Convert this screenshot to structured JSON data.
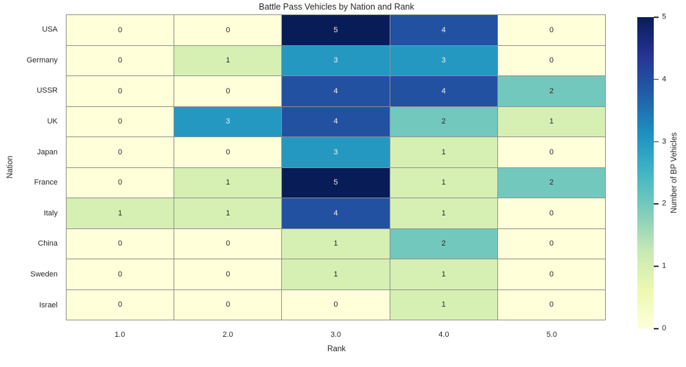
{
  "chart_data": {
    "type": "heatmap",
    "title": "Battle Pass Vehicles by Nation and Rank",
    "xlabel": "Rank",
    "ylabel": "Nation",
    "x_ticklabels": [
      "1.0",
      "2.0",
      "3.0",
      "4.0",
      "5.0"
    ],
    "y_ticklabels": [
      "USA",
      "Germany",
      "USSR",
      "UK",
      "Japan",
      "France",
      "Italy",
      "China",
      "Sweden",
      "Israel"
    ],
    "values": [
      [
        0,
        0,
        5,
        4,
        0
      ],
      [
        0,
        1,
        3,
        3,
        0
      ],
      [
        0,
        0,
        4,
        4,
        2
      ],
      [
        0,
        3,
        4,
        2,
        1
      ],
      [
        0,
        0,
        3,
        1,
        0
      ],
      [
        0,
        1,
        5,
        1,
        2
      ],
      [
        1,
        1,
        4,
        1,
        0
      ],
      [
        0,
        0,
        1,
        2,
        0
      ],
      [
        0,
        0,
        1,
        1,
        0
      ],
      [
        0,
        0,
        0,
        1,
        0
      ]
    ],
    "value_range": [
      0,
      5
    ],
    "grid_on": true,
    "colormap_name": "YlGnBu",
    "value_colors": [
      "#ffffd9",
      "#d6efb3",
      "#73c8bd",
      "#2598c1",
      "#2351a2",
      "#081d58"
    ],
    "annotation_dark_text": "#262626",
    "annotation_light_text": "#f2f2f2",
    "light_text_threshold": 3,
    "grid_line_color": "#8f8f8f",
    "colorbar": {
      "label": "Number of BP Vehicles",
      "ticks": [
        0,
        1,
        2,
        3,
        4,
        5
      ],
      "min": 0,
      "max": 5,
      "position": "right",
      "gradient_stops_bottom_to_top": [
        "#ffffd9",
        "#edf8b1",
        "#c7e9b4",
        "#7fcdbb",
        "#41b6c4",
        "#1d91c0",
        "#225ea8",
        "#253494",
        "#081d58"
      ]
    }
  }
}
